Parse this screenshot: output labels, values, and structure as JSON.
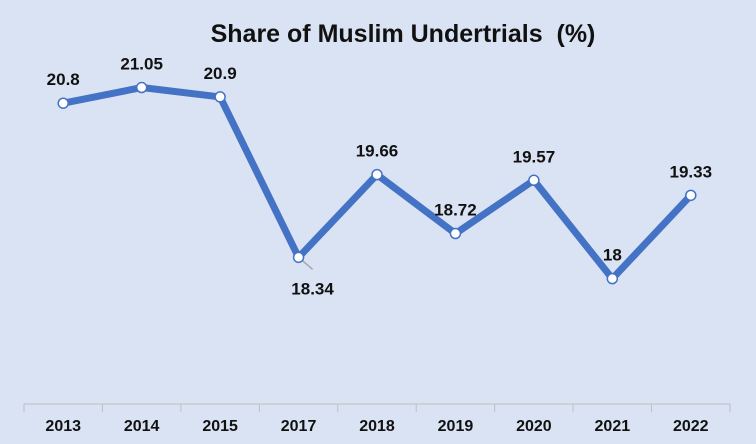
{
  "chart_data": {
    "type": "line",
    "title": "Share of Muslim Undertrials  (%)",
    "categories": [
      "2013",
      "2014",
      "2015",
      "2017",
      "2018",
      "2019",
      "2020",
      "2021",
      "2022"
    ],
    "series": [
      {
        "values": [
          20.8,
          21.05,
          20.9,
          18.34,
          19.66,
          18.72,
          19.57,
          18,
          19.33
        ],
        "labels": [
          "20.8",
          "21.05",
          "20.9",
          "18.34",
          "19.66",
          "18.72",
          "19.57",
          "18",
          "19.33"
        ]
      }
    ],
    "label_positions": [
      "above",
      "above",
      "above",
      "below",
      "above",
      "above",
      "above",
      "above",
      "above"
    ],
    "ylim": [
      16,
      22
    ],
    "grid": false,
    "legend": "none",
    "colors": {
      "line": "#4472c4",
      "marker_fill": "#ffffff",
      "background": "#dae3f3",
      "axis": "#bfbfbf"
    }
  }
}
